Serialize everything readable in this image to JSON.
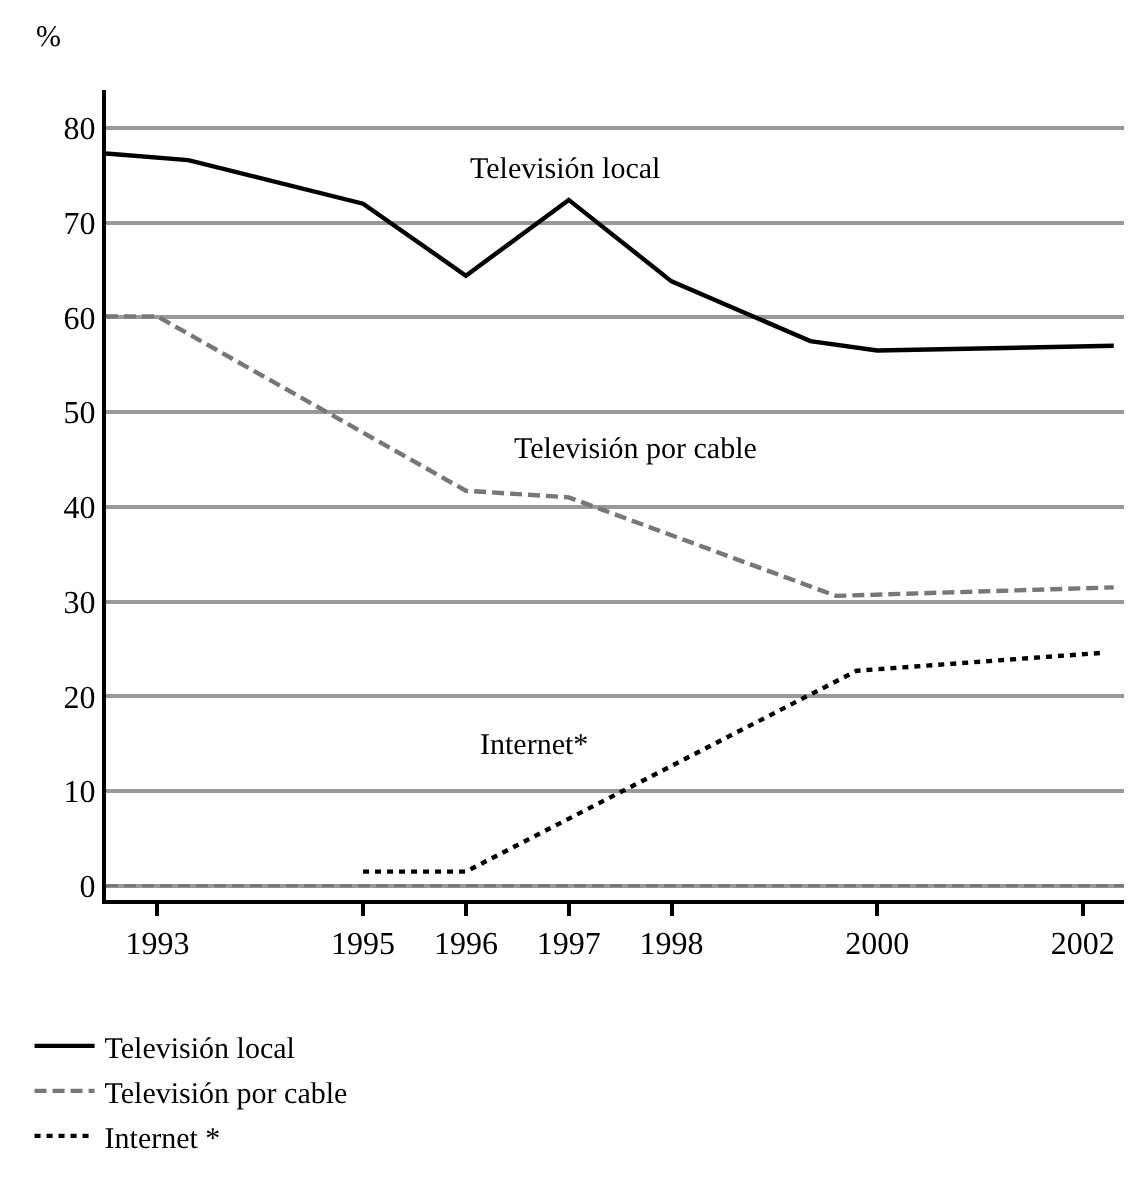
{
  "chart_data": {
    "type": "line",
    "ylabel": "%",
    "xlim": [
      1992.5,
      2002.4
    ],
    "xticks": [
      1993,
      1995,
      1996,
      1997,
      1998,
      2000,
      2002
    ],
    "ylim": [
      -1.5,
      84
    ],
    "yticks": [
      0,
      10,
      20,
      30,
      40,
      50,
      60,
      70,
      80
    ],
    "grid": "y",
    "legend": "bottom left",
    "marker": "none",
    "series": [
      {
        "name": "Televisión local",
        "color": "#000000",
        "line_style": "solid",
        "x": [
          1992.5,
          1993.3,
          1995,
          1996,
          1997,
          1998,
          1999.35,
          2000,
          2002.3
        ],
        "values": [
          77.3,
          76.6,
          72.0,
          64.4,
          72.4,
          63.8,
          57.5,
          56.5,
          57.0
        ]
      },
      {
        "name": "Televisión por cable",
        "color": "#777777",
        "line_style": "dashed",
        "x": [
          1992.5,
          1993,
          1996,
          1997,
          1999.6,
          2002.3
        ],
        "values": [
          60.1,
          60.1,
          41.7,
          41.0,
          30.6,
          31.5
        ]
      },
      {
        "name": "Internet *",
        "color": "#000000",
        "line_style": "dotted",
        "x": [
          1995,
          1996,
          1999.8,
          2002.2
        ],
        "values": [
          1.5,
          1.5,
          22.7,
          24.6
        ]
      }
    ],
    "ref_lines": [
      {
        "axis": "y",
        "value": 0,
        "color": "#777777",
        "line_style": "dashed"
      }
    ],
    "annotations": [
      "Televisión local",
      "Televisión por cable",
      "Internet*"
    ]
  }
}
